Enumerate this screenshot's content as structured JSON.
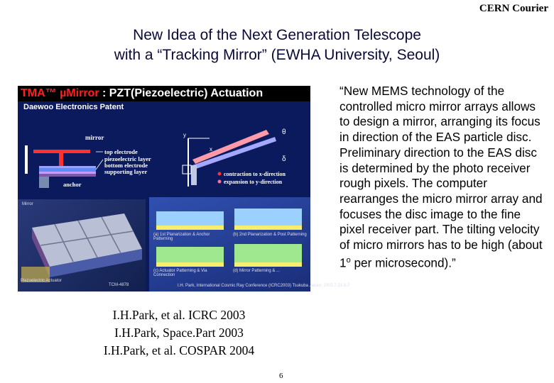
{
  "header": {
    "mark": "CERN Courier"
  },
  "title": {
    "line1": "New Idea of the Next Generation Telescope",
    "line2": "with a “Tracking Mirror” (EWHA University, Seoul)"
  },
  "figure": {
    "heading_left": "TMA™  µMirror",
    "heading_right": " :  PZT(Piezoelectric) Actuation",
    "subheading": "Daewoo Electronics Patent",
    "labels": {
      "mirror": "mirror",
      "top_electrode": "top electrode",
      "piezo": "piezoelectric layer",
      "bottom_electrode": "bottom electrode",
      "supporting": "supporting layer",
      "anchor": "anchor",
      "contraction": "contraction to x-direction",
      "expansion": "expansion to y-direction",
      "axis_y": "y",
      "axis_x": "x",
      "theta": "θ",
      "delta": "δ"
    },
    "panels": {
      "mirror": "Mirror",
      "piezo_actuator": "Piezoelectric Actuator",
      "tma": "TCM-4878",
      "step1": "(a) 1st Planarization & Anchor Patterning",
      "step2": "(b) 2nd Planarization & Post Patterning",
      "step3": "(c) Actuator Patterning & Via Connection",
      "step4": "(d) Mirror Patterning & ...",
      "citation": "I.H. Park, International Cosmic Ray Conference (ICRC2003) Tsukuba Japan, 2003.7.31-8.7"
    }
  },
  "quote": "“New  MEMS technology of the controlled micro mirror arrays allows to design a mirror, arranging its focus in direction of the EAS particle disc. Preliminary direction to the EAS disc is determined by the photo receiver rough pixels. The computer rearranges the micro mirror array and focuses the disc image to the fine pixel receiver part. The tilting velocity of micro mirrors has to be high (about 1",
  "quote_sup": "o",
  "quote_end": " per microsecond).”",
  "references": [
    "I.H.Park, et al. ICRC 2003",
    "I.H.Park, Space.Part 2003",
    "I.H.Park, et al. COSPAR 2004"
  ],
  "page_number": "6"
}
